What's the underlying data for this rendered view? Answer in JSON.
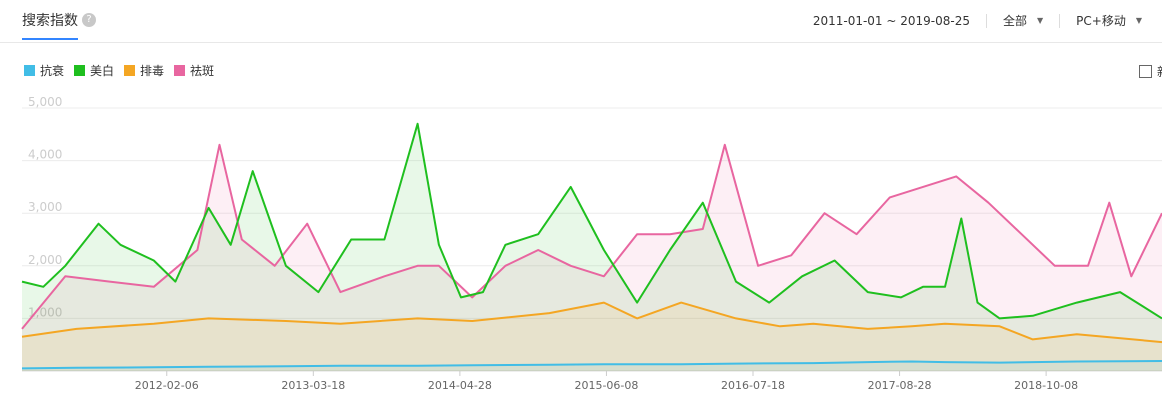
{
  "header": {
    "tab_label": "搜索指数",
    "help_icon_glyph": "?",
    "date_range": "2011-01-01 ~ 2019-08-25",
    "region": "全部",
    "device": "PC+移动"
  },
  "checkbox_label": "新",
  "chart_data": {
    "type": "area",
    "title": "",
    "xlabel": "",
    "ylabel": "",
    "ylim": [
      0,
      5000
    ],
    "yticks": [
      1000,
      2000,
      3000,
      4000,
      5000
    ],
    "ytick_labels": [
      "1,000",
      "2,000",
      "3,000",
      "4,000",
      "5,000"
    ],
    "x_range": [
      "2011-01-01",
      "2019-08-25"
    ],
    "xticks": [
      "2012-02-06",
      "2013-03-18",
      "2014-04-28",
      "2015-06-08",
      "2016-07-18",
      "2017-08-28",
      "2018-10-08"
    ],
    "grid": true,
    "legend_position": "top-left",
    "series": [
      {
        "name": "抗衰",
        "color": "#41bde6",
        "points": [
          [
            "2011-01-01",
            50
          ],
          [
            "2011-06-01",
            60
          ],
          [
            "2012-01-01",
            70
          ],
          [
            "2012-06-01",
            80
          ],
          [
            "2013-01-01",
            90
          ],
          [
            "2013-06-01",
            100
          ],
          [
            "2014-01-01",
            100
          ],
          [
            "2014-06-01",
            110
          ],
          [
            "2015-01-01",
            120
          ],
          [
            "2015-06-01",
            130
          ],
          [
            "2016-01-01",
            130
          ],
          [
            "2016-06-01",
            140
          ],
          [
            "2017-01-01",
            150
          ],
          [
            "2017-06-01",
            170
          ],
          [
            "2017-10-01",
            180
          ],
          [
            "2018-01-01",
            170
          ],
          [
            "2018-06-01",
            160
          ],
          [
            "2019-01-01",
            180
          ],
          [
            "2019-08-25",
            190
          ]
        ]
      },
      {
        "name": "美白",
        "color": "#1fbf1f",
        "points": [
          [
            "2011-01-01",
            1700
          ],
          [
            "2011-03-01",
            1600
          ],
          [
            "2011-05-01",
            2000
          ],
          [
            "2011-08-01",
            2800
          ],
          [
            "2011-10-01",
            2400
          ],
          [
            "2012-01-01",
            2100
          ],
          [
            "2012-03-01",
            1700
          ],
          [
            "2012-06-01",
            3100
          ],
          [
            "2012-08-01",
            2400
          ],
          [
            "2012-10-01",
            3800
          ],
          [
            "2013-01-01",
            2000
          ],
          [
            "2013-04-01",
            1500
          ],
          [
            "2013-07-01",
            2500
          ],
          [
            "2013-10-01",
            2500
          ],
          [
            "2014-01-01",
            4700
          ],
          [
            "2014-03-01",
            2400
          ],
          [
            "2014-05-01",
            1400
          ],
          [
            "2014-07-01",
            1500
          ],
          [
            "2014-09-01",
            2400
          ],
          [
            "2014-12-01",
            2600
          ],
          [
            "2015-03-01",
            3500
          ],
          [
            "2015-06-01",
            2300
          ],
          [
            "2015-09-01",
            1300
          ],
          [
            "2015-12-01",
            2300
          ],
          [
            "2016-03-01",
            3200
          ],
          [
            "2016-06-01",
            1700
          ],
          [
            "2016-09-01",
            1300
          ],
          [
            "2016-12-01",
            1800
          ],
          [
            "2017-03-01",
            2100
          ],
          [
            "2017-06-01",
            1500
          ],
          [
            "2017-09-01",
            1400
          ],
          [
            "2017-11-01",
            1600
          ],
          [
            "2018-01-01",
            1600
          ],
          [
            "2018-02-15",
            2900
          ],
          [
            "2018-04-01",
            1300
          ],
          [
            "2018-06-01",
            1000
          ],
          [
            "2018-09-01",
            1050
          ],
          [
            "2019-01-01",
            1300
          ],
          [
            "2019-05-01",
            1500
          ],
          [
            "2019-08-25",
            1000
          ]
        ]
      },
      {
        "name": "排毒",
        "color": "#f4a623",
        "points": [
          [
            "2011-01-01",
            650
          ],
          [
            "2011-06-01",
            800
          ],
          [
            "2012-01-01",
            900
          ],
          [
            "2012-06-01",
            1000
          ],
          [
            "2013-01-01",
            950
          ],
          [
            "2013-06-01",
            900
          ],
          [
            "2014-01-01",
            1000
          ],
          [
            "2014-06-01",
            950
          ],
          [
            "2015-01-01",
            1100
          ],
          [
            "2015-06-01",
            1300
          ],
          [
            "2015-09-01",
            1000
          ],
          [
            "2016-01-01",
            1300
          ],
          [
            "2016-06-01",
            1000
          ],
          [
            "2016-10-01",
            850
          ],
          [
            "2017-01-01",
            900
          ],
          [
            "2017-06-01",
            800
          ],
          [
            "2017-10-01",
            850
          ],
          [
            "2018-01-01",
            900
          ],
          [
            "2018-06-01",
            850
          ],
          [
            "2018-09-01",
            600
          ],
          [
            "2019-01-01",
            700
          ],
          [
            "2019-08-25",
            550
          ]
        ]
      },
      {
        "name": "祛斑",
        "color": "#e866a0",
        "points": [
          [
            "2011-01-01",
            800
          ],
          [
            "2011-05-01",
            1800
          ],
          [
            "2011-09-01",
            1700
          ],
          [
            "2012-01-01",
            1600
          ],
          [
            "2012-05-01",
            2300
          ],
          [
            "2012-07-01",
            4300
          ],
          [
            "2012-09-01",
            2500
          ],
          [
            "2012-12-01",
            2000
          ],
          [
            "2013-03-01",
            2800
          ],
          [
            "2013-06-01",
            1500
          ],
          [
            "2013-10-01",
            1800
          ],
          [
            "2014-01-01",
            2000
          ],
          [
            "2014-03-01",
            2000
          ],
          [
            "2014-06-01",
            1400
          ],
          [
            "2014-09-01",
            2000
          ],
          [
            "2014-12-01",
            2300
          ],
          [
            "2015-03-01",
            2000
          ],
          [
            "2015-06-01",
            1800
          ],
          [
            "2015-09-01",
            2600
          ],
          [
            "2015-12-01",
            2600
          ],
          [
            "2016-03-01",
            2700
          ],
          [
            "2016-05-01",
            4300
          ],
          [
            "2016-08-01",
            2000
          ],
          [
            "2016-11-01",
            2200
          ],
          [
            "2017-02-01",
            3000
          ],
          [
            "2017-05-01",
            2600
          ],
          [
            "2017-08-01",
            3300
          ],
          [
            "2017-11-01",
            3500
          ],
          [
            "2018-02-01",
            3700
          ],
          [
            "2018-05-01",
            3200
          ],
          [
            "2018-08-01",
            2600
          ],
          [
            "2018-11-01",
            2000
          ],
          [
            "2019-02-01",
            2000
          ],
          [
            "2019-04-01",
            3200
          ],
          [
            "2019-06-01",
            1800
          ],
          [
            "2019-08-25",
            3000
          ]
        ]
      }
    ]
  }
}
